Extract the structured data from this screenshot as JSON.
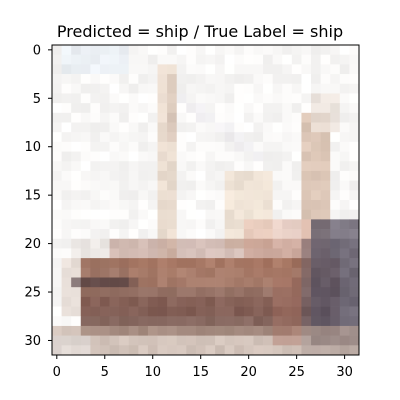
{
  "title": "Predicted = ship / True Label = ship",
  "image": {
    "rows": 32,
    "cols": 32,
    "content": "low-resolution ship photo"
  },
  "axes": {
    "x_ticks": [
      "0",
      "5",
      "10",
      "15",
      "20",
      "25",
      "30"
    ],
    "y_ticks": [
      "0",
      "5",
      "10",
      "15",
      "20",
      "25",
      "30"
    ]
  }
}
